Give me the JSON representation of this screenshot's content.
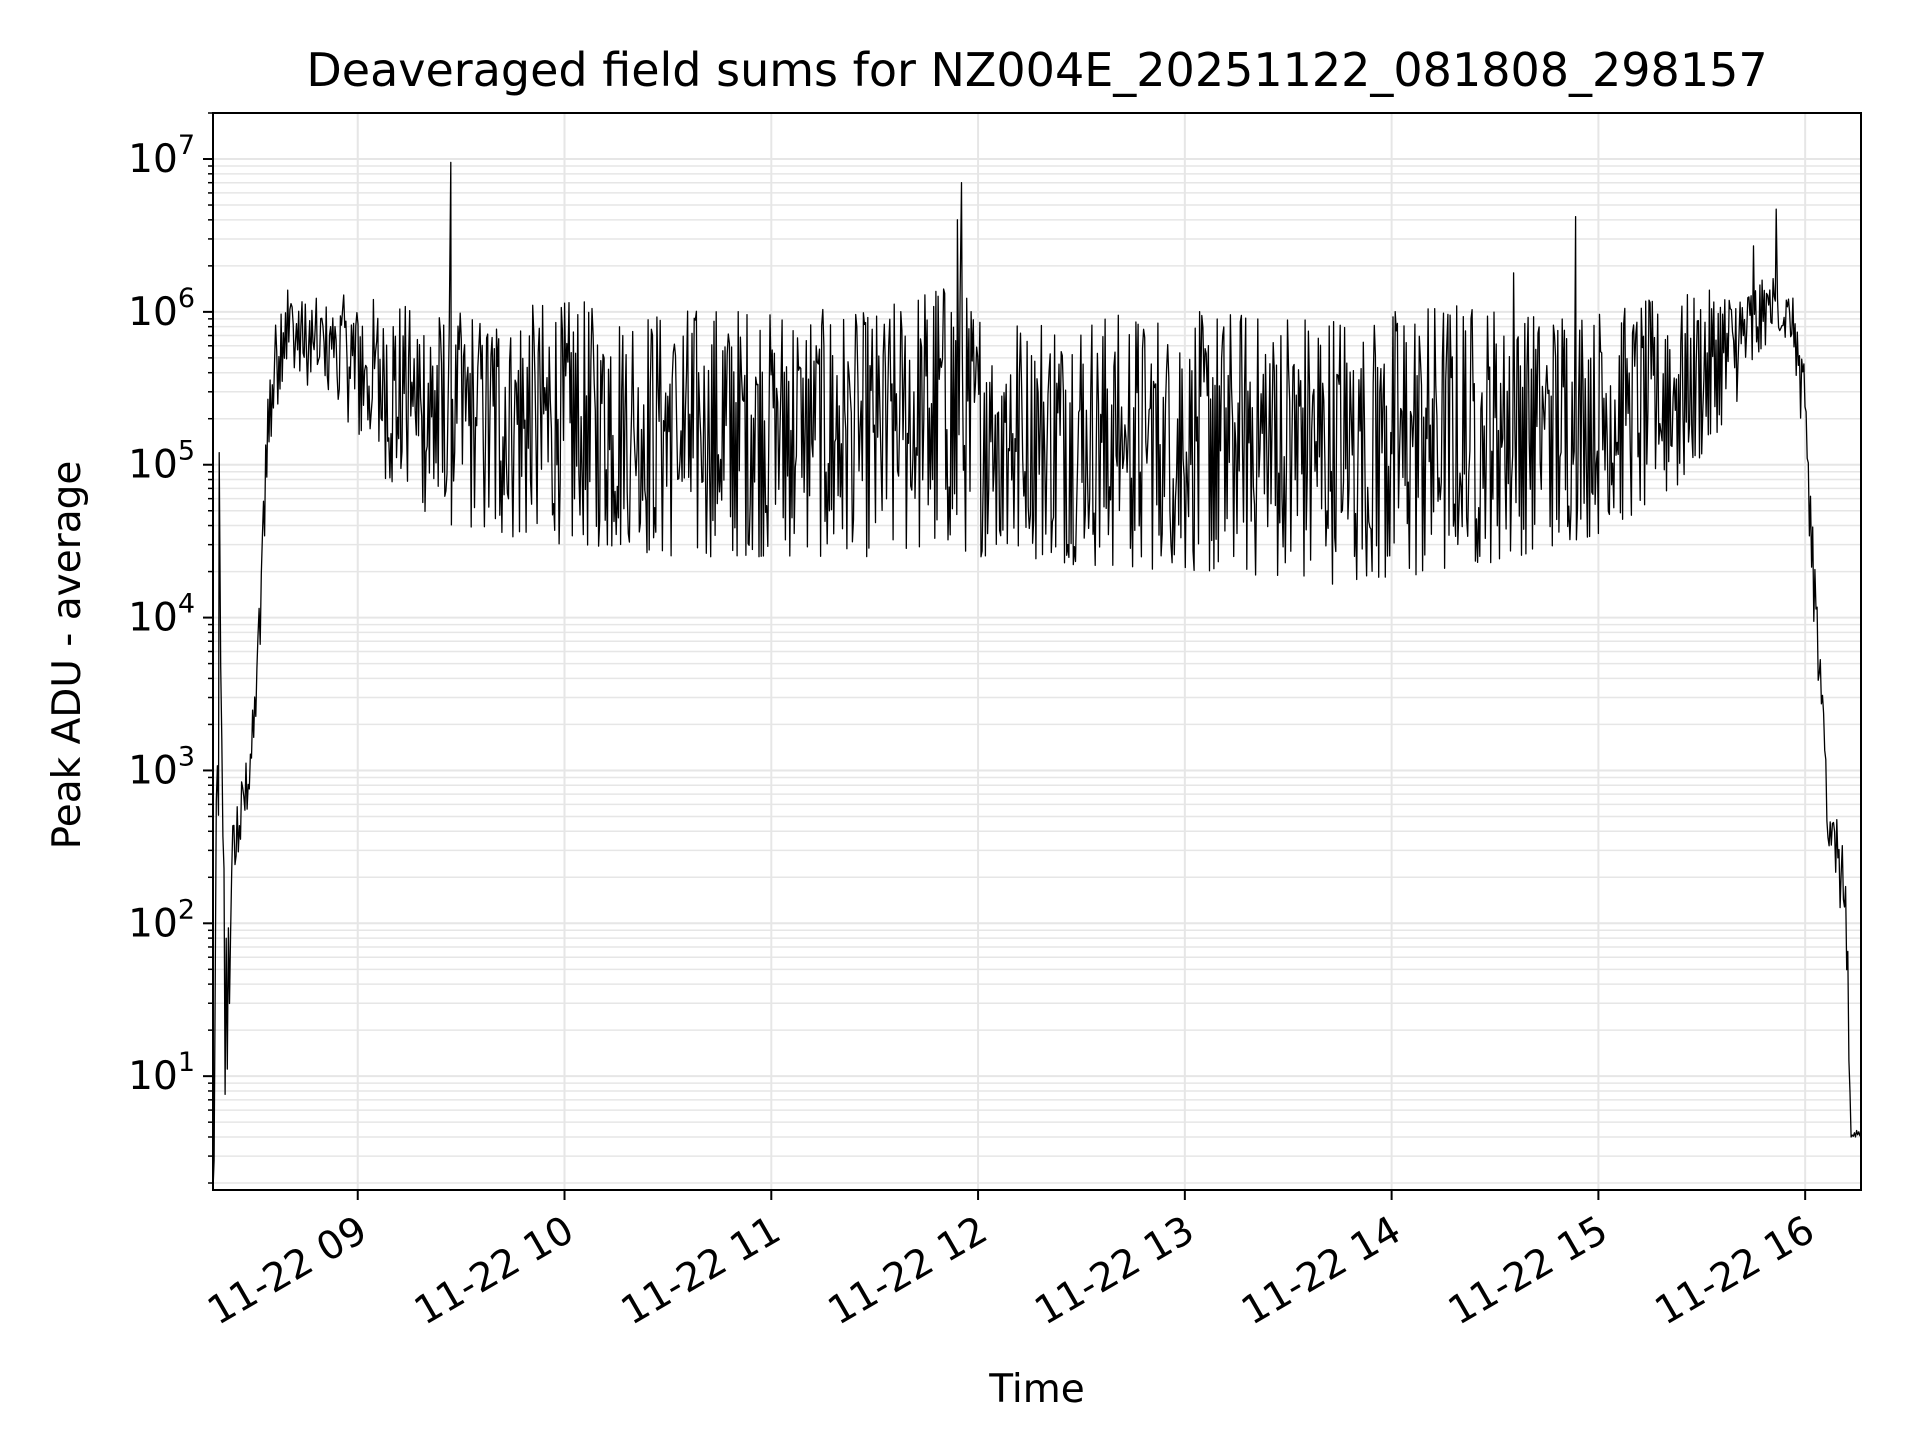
{
  "chart_data": {
    "type": "line",
    "title": "Deaveraged field sums for NZ004E_20251122_081808_298157",
    "xlabel": "Time",
    "ylabel": "Peak ADU - average",
    "yscale": "log",
    "ylim": [
      1.8,
      20000000
    ],
    "xlim_hours": [
      8.3,
      16.27
    ],
    "grid": true,
    "x_ticks": [
      {
        "hour": 9,
        "label": "11-22 09"
      },
      {
        "hour": 10,
        "label": "11-22 10"
      },
      {
        "hour": 11,
        "label": "11-22 11"
      },
      {
        "hour": 12,
        "label": "11-22 12"
      },
      {
        "hour": 13,
        "label": "11-22 13"
      },
      {
        "hour": 14,
        "label": "11-22 14"
      },
      {
        "hour": 15,
        "label": "11-22 15"
      },
      {
        "hour": 16,
        "label": "11-22 16"
      }
    ],
    "y_ticks": [
      {
        "value": 10,
        "base": "10",
        "exp": "1"
      },
      {
        "value": 100,
        "base": "10",
        "exp": "2"
      },
      {
        "value": 1000,
        "base": "10",
        "exp": "3"
      },
      {
        "value": 10000,
        "base": "10",
        "exp": "4"
      },
      {
        "value": 100000,
        "base": "10",
        "exp": "5"
      },
      {
        "value": 1000000,
        "base": "10",
        "exp": "6"
      },
      {
        "value": 10000000,
        "base": "10",
        "exp": "7"
      }
    ],
    "series": [
      {
        "name": "Peak ADU - average",
        "color": "#000000",
        "envelope": [
          [
            8.3,
            1.8,
            1.8
          ],
          [
            8.33,
            5,
            120000
          ],
          [
            8.36,
            4,
            100
          ],
          [
            8.4,
            150,
            600
          ],
          [
            8.45,
            400,
            1000
          ],
          [
            8.48,
            700,
            2000
          ],
          [
            8.5,
            1500,
            3000
          ],
          [
            8.53,
            6000,
            20000
          ],
          [
            8.56,
            80000,
            300000
          ],
          [
            8.6,
            200000,
            900000
          ],
          [
            8.65,
            450000,
            1700000
          ],
          [
            8.75,
            300000,
            1200000
          ],
          [
            8.9,
            250000,
            1300000
          ],
          [
            9.0,
            150000,
            1300000
          ],
          [
            9.2,
            60000,
            1200000
          ],
          [
            9.45,
            40000,
            1000000
          ],
          [
            9.6,
            35000,
            1100000
          ],
          [
            10.0,
            30000,
            1200000
          ],
          [
            10.5,
            25000,
            1100000
          ],
          [
            11.0,
            25000,
            1100000
          ],
          [
            11.5,
            25000,
            1000000
          ],
          [
            11.85,
            30000,
            1800000
          ],
          [
            12.0,
            25000,
            1100000
          ],
          [
            12.5,
            22000,
            1000000
          ],
          [
            13.0,
            20000,
            1000000
          ],
          [
            13.5,
            18000,
            1100000
          ],
          [
            13.8,
            16000,
            1000000
          ],
          [
            14.3,
            20000,
            1200000
          ],
          [
            14.6,
            25000,
            1100000
          ],
          [
            15.0,
            35000,
            1100000
          ],
          [
            15.4,
            70000,
            1300000
          ],
          [
            15.7,
            300000,
            1500000
          ],
          [
            15.85,
            800000,
            1700000
          ],
          [
            15.95,
            500000,
            1200000
          ],
          [
            16.0,
            60000,
            400000
          ],
          [
            16.05,
            5000,
            30000
          ],
          [
            16.1,
            400,
            1500
          ],
          [
            16.15,
            200,
            600
          ],
          [
            16.2,
            40,
            300
          ],
          [
            16.22,
            4,
            4
          ],
          [
            16.27,
            4,
            5
          ]
        ],
        "spikes": [
          {
            "hour": 8.33,
            "value": 120000
          },
          {
            "hour": 9.45,
            "value": 9500000
          },
          {
            "hour": 11.92,
            "value": 7000000
          },
          {
            "hour": 11.9,
            "value": 4000000
          },
          {
            "hour": 14.59,
            "value": 1800000
          },
          {
            "hour": 14.89,
            "value": 4200000
          },
          {
            "hour": 15.75,
            "value": 2700000
          },
          {
            "hour": 15.86,
            "value": 4700000
          }
        ]
      }
    ]
  }
}
